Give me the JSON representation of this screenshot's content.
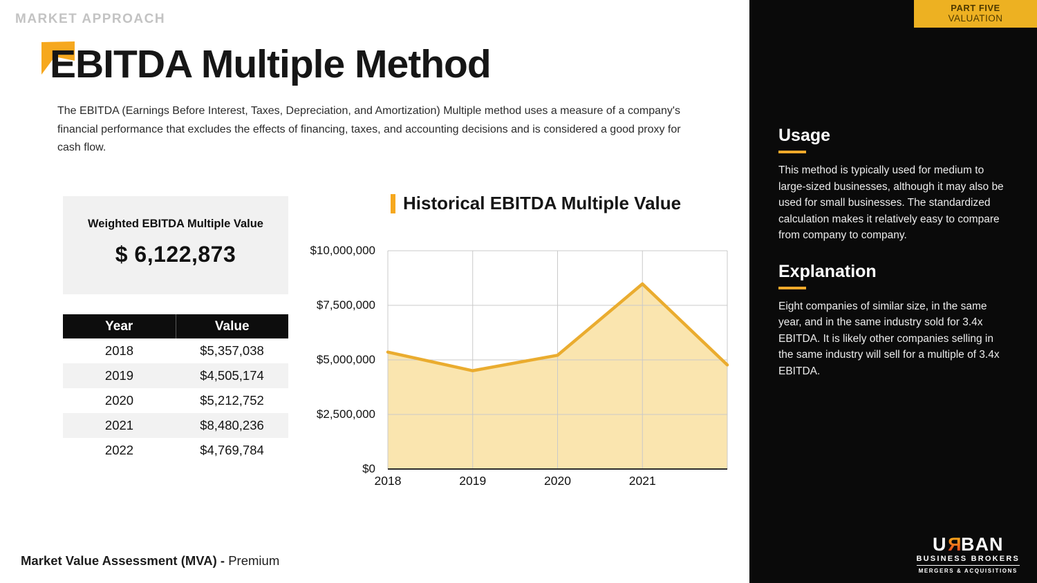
{
  "eyebrow": "MARKET APPROACH",
  "title": "EBITDA Multiple Method",
  "intro": "The EBITDA  (Earnings Before Interest, Taxes, Depreciation, and Amortization) Multiple method uses a measure of a company's financial performance that excludes the effects of financing, taxes, and accounting decisions and is considered a good proxy for cash flow.",
  "weighted_box": {
    "label": "Weighted EBITDA Multiple Value",
    "value": "$ 6,122,873"
  },
  "table": {
    "headers": [
      "Year",
      "Value"
    ],
    "rows": [
      [
        "2018",
        "$5,357,038"
      ],
      [
        "2019",
        "$4,505,174"
      ],
      [
        "2020",
        "$5,212,752"
      ],
      [
        "2021",
        "$8,480,236"
      ],
      [
        "2022",
        "$4,769,784"
      ]
    ]
  },
  "chart_data": {
    "type": "area",
    "title": "Historical EBITDA Multiple Value",
    "x": [
      2018,
      2019,
      2020,
      2021,
      2022
    ],
    "values": [
      5357038,
      4505174,
      5212752,
      8480236,
      4769784
    ],
    "x_tick_labels": [
      "2018",
      "2019",
      "2020",
      "2021"
    ],
    "y_ticks": [
      0,
      2500000,
      5000000,
      7500000,
      10000000
    ],
    "y_tick_labels": [
      "$0",
      "$2,500,000",
      "$5,000,000",
      "$7,500,000",
      "$10,000,000"
    ],
    "ylim": [
      0,
      10000000
    ],
    "grid": true,
    "legend": false,
    "line_color": "#EAAC2F",
    "fill_color": "#FAE5AF"
  },
  "sidebar": {
    "tag_line1": "PART FIVE",
    "tag_line2": "VALUATION",
    "sections": [
      {
        "heading": "Usage",
        "body": "This method is typically used for medium to large-sized businesses, although it may also be used for small businesses. The standardized calculation makes it relatively easy to compare from company to company."
      },
      {
        "heading": "Explanation",
        "body": "Eight companies of similar size, in the same year, and in the same industry sold for 3.4x EBITDA. It is likely other companies selling in the same industry will sell for a multiple of 3.4x EBITDA."
      }
    ],
    "logo": {
      "parts": [
        "U",
        "R",
        "BAN"
      ],
      "line2": "BUSINESS BROKERS",
      "line3": "MERGERS & ACQUISITIONS"
    }
  },
  "footer": {
    "bold": "Market Value Assessment (MVA) - ",
    "regular": "Premium"
  },
  "colors": {
    "accent": "#F6A81E",
    "tag_bg": "#EDB122",
    "sidebar_bg": "#0a0a0a",
    "grid": "#c9c9c9"
  }
}
